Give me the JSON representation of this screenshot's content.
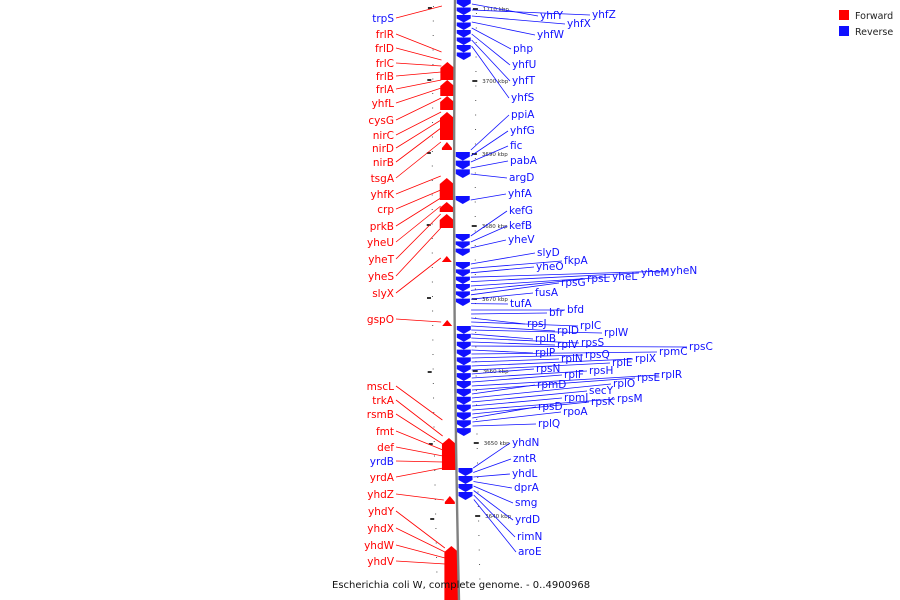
{
  "caption": "Escherichia coli W, complete genome. - 0..4900968",
  "legend": [
    {
      "label": "Forward",
      "color": "#ff0000"
    },
    {
      "label": "Reverse",
      "color": "#1010ff"
    }
  ],
  "scale_ticks": [
    {
      "label": "1710 kbp",
      "kbp": 1710
    },
    {
      "label": "3700 kbp",
      "kbp": 3700
    },
    {
      "label": "3690 kbp",
      "kbp": 3690
    },
    {
      "label": "3680 kbp",
      "kbp": 3680
    },
    {
      "label": "3670 kbp",
      "kbp": 3670
    },
    {
      "label": "3660 kbp",
      "kbp": 3660
    },
    {
      "label": "3650 kbp",
      "kbp": 3650
    },
    {
      "label": "3640 kbp",
      "kbp": 3640
    }
  ],
  "forward_genes": [
    "trpS",
    "frlR",
    "frlD",
    "frlC",
    "frlB",
    "frlA",
    "yhfL",
    "cysG",
    "nirC",
    "nirD",
    "nirB",
    "tsgA",
    "yhfK",
    "crp",
    "prkB",
    "yheU",
    "yheT",
    "yheS",
    "slyX",
    "gspO",
    "mscL",
    "trkA",
    "rsmB",
    "fmt",
    "def",
    "yrdB",
    "yrdA",
    "yhdZ",
    "yhdY",
    "yhdX",
    "yhdW",
    "yhdV"
  ],
  "reverse_genes": [
    "yhfY",
    "yhfZ",
    "yhfX",
    "yhfW",
    "php",
    "yhfU",
    "yhfT",
    "yhfS",
    "ppiA",
    "yhfG",
    "fic",
    "pabA",
    "argD",
    "yhfA",
    "kefG",
    "kefB",
    "yheV",
    "slyD",
    "fkpA",
    "yheO",
    "yheN",
    "yheM",
    "yheL",
    "rpsL",
    "rpsG",
    "fusA",
    "tufA",
    "bfd",
    "bfr",
    "rpsJ",
    "rplC",
    "rplD",
    "rplW",
    "rplB",
    "rpsS",
    "rplV",
    "rpsC",
    "rplP",
    "rpmC",
    "rpsQ",
    "rplN",
    "rplX",
    "rplE",
    "rpsN",
    "rpsH",
    "rplF",
    "rplR",
    "rpsE",
    "rpmD",
    "rplO",
    "secY",
    "rpmJ",
    "rpsM",
    "rpsK",
    "rpsD",
    "rpoA",
    "rplQ",
    "yhdN",
    "zntR",
    "yhdL",
    "dprA",
    "smg",
    "yrdD",
    "rimN",
    "aroE"
  ]
}
